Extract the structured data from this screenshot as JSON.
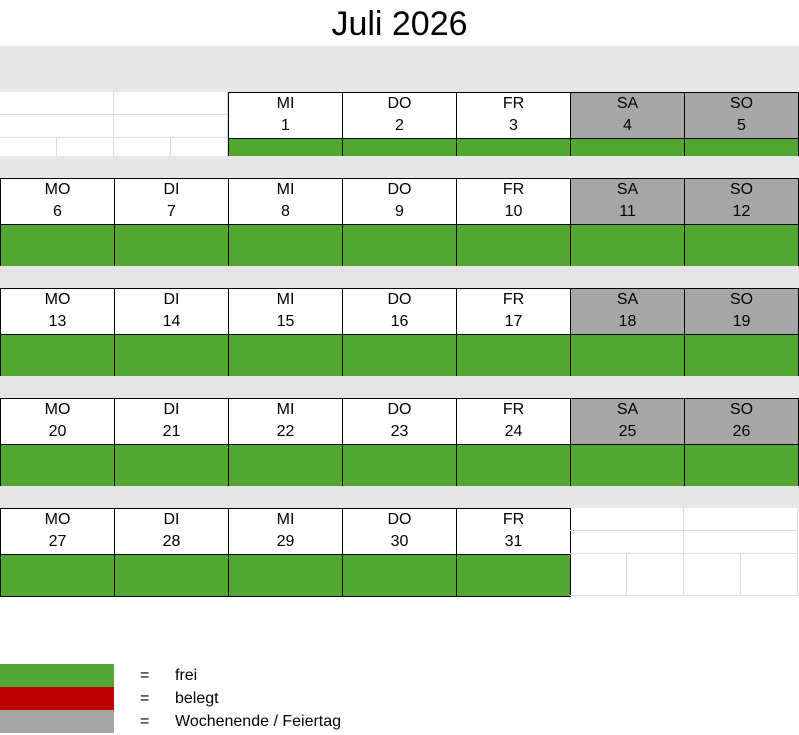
{
  "title": "Juli 2026",
  "colors": {
    "frei": "#52a732",
    "belegt": "#c00000",
    "weekend": "#a6a6a6",
    "band": "#e6e6e6"
  },
  "weeks": [
    [
      null,
      null,
      {
        "dow": "MI",
        "day": "1",
        "status": "frei"
      },
      {
        "dow": "DO",
        "day": "2",
        "status": "frei"
      },
      {
        "dow": "FR",
        "day": "3",
        "status": "frei"
      },
      {
        "dow": "SA",
        "day": "4",
        "status": "frei",
        "weekend": true
      },
      {
        "dow": "SO",
        "day": "5",
        "status": "frei",
        "weekend": true
      }
    ],
    [
      {
        "dow": "MO",
        "day": "6",
        "status": "frei"
      },
      {
        "dow": "DI",
        "day": "7",
        "status": "frei"
      },
      {
        "dow": "MI",
        "day": "8",
        "status": "frei"
      },
      {
        "dow": "DO",
        "day": "9",
        "status": "frei"
      },
      {
        "dow": "FR",
        "day": "10",
        "status": "frei"
      },
      {
        "dow": "SA",
        "day": "11",
        "status": "frei",
        "weekend": true
      },
      {
        "dow": "SO",
        "day": "12",
        "status": "frei",
        "weekend": true
      }
    ],
    [
      {
        "dow": "MO",
        "day": "13",
        "status": "frei"
      },
      {
        "dow": "DI",
        "day": "14",
        "status": "frei"
      },
      {
        "dow": "MI",
        "day": "15",
        "status": "frei"
      },
      {
        "dow": "DO",
        "day": "16",
        "status": "frei"
      },
      {
        "dow": "FR",
        "day": "17",
        "status": "frei"
      },
      {
        "dow": "SA",
        "day": "18",
        "status": "frei",
        "weekend": true
      },
      {
        "dow": "SO",
        "day": "19",
        "status": "frei",
        "weekend": true
      }
    ],
    [
      {
        "dow": "MO",
        "day": "20",
        "status": "frei"
      },
      {
        "dow": "DI",
        "day": "21",
        "status": "frei"
      },
      {
        "dow": "MI",
        "day": "22",
        "status": "frei"
      },
      {
        "dow": "DO",
        "day": "23",
        "status": "frei"
      },
      {
        "dow": "FR",
        "day": "24",
        "status": "frei"
      },
      {
        "dow": "SA",
        "day": "25",
        "status": "frei",
        "weekend": true
      },
      {
        "dow": "SO",
        "day": "26",
        "status": "frei",
        "weekend": true
      }
    ],
    [
      {
        "dow": "MO",
        "day": "27",
        "status": "frei"
      },
      {
        "dow": "DI",
        "day": "28",
        "status": "frei"
      },
      {
        "dow": "MI",
        "day": "29",
        "status": "frei"
      },
      {
        "dow": "DO",
        "day": "30",
        "status": "frei"
      },
      {
        "dow": "FR",
        "day": "31",
        "status": "frei"
      },
      null,
      null
    ]
  ],
  "legend": [
    {
      "key": "frei",
      "eq": "=",
      "label": "frei"
    },
    {
      "key": "belegt",
      "eq": "=",
      "label": "belegt"
    },
    {
      "key": "weekend",
      "eq": "=",
      "label": "Wochenende / Feiertag"
    }
  ]
}
